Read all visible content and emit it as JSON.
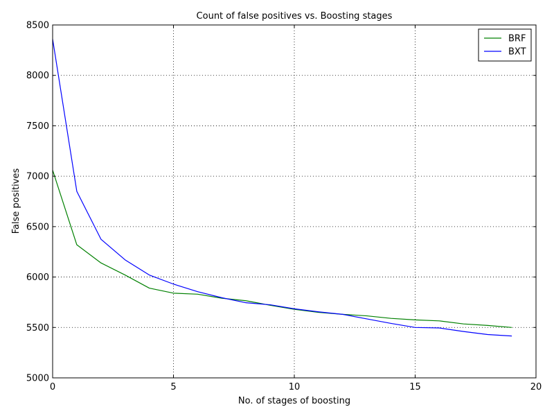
{
  "chart_data": {
    "type": "line",
    "title": "Count of false positives vs. Boosting stages",
    "xlabel": "No. of stages of boosting",
    "ylabel": "False positives",
    "xlim": [
      0,
      20
    ],
    "ylim": [
      5000,
      8500
    ],
    "xticks": [
      "0",
      "5",
      "10",
      "15",
      "20"
    ],
    "yticks": [
      "5000",
      "5500",
      "6000",
      "6500",
      "7000",
      "7500",
      "8000",
      "8500"
    ],
    "grid": true,
    "legend_position": "top-right",
    "x": [
      0,
      1,
      2,
      3,
      4,
      5,
      6,
      7,
      8,
      9,
      10,
      11,
      12,
      13,
      14,
      15,
      16,
      17,
      18,
      19
    ],
    "series": [
      {
        "name": "BRF",
        "color": "#008000",
        "values": [
          7060,
          6320,
          6140,
          6020,
          5890,
          5840,
          5830,
          5790,
          5765,
          5720,
          5680,
          5650,
          5630,
          5615,
          5590,
          5575,
          5565,
          5535,
          5520,
          5500
        ]
      },
      {
        "name": "BXT",
        "color": "#0000ff",
        "values": [
          8360,
          6850,
          6375,
          6170,
          6020,
          5930,
          5855,
          5795,
          5745,
          5725,
          5685,
          5655,
          5630,
          5585,
          5540,
          5500,
          5495,
          5460,
          5430,
          5415
        ]
      }
    ]
  }
}
